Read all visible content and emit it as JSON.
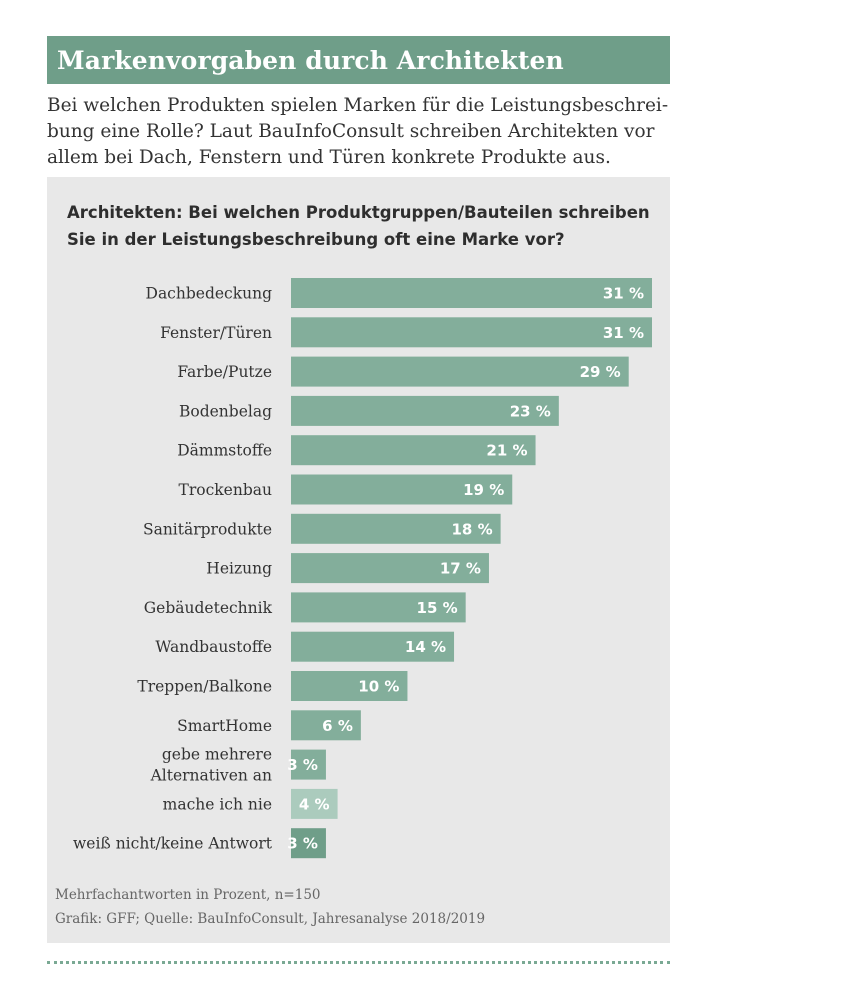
{
  "header": {
    "title": "Markenvorgaben durch Architekten",
    "intro_lines": [
      "Bei welchen Produkten spielen Marken für die Leistungsbeschrei-",
      "bung eine Rolle? Laut BauInfoConsult schreiben Architekten vor",
      "allem bei Dach, Fenstern und Türen konkrete Produkte aus."
    ]
  },
  "chart_data": {
    "type": "bar",
    "orientation": "horizontal",
    "title_lines": [
      "Architekten: Bei welchen Produktgruppen/Bauteilen schreiben",
      "Sie in der Leistungsbeschreibung oft eine Marke vor?"
    ],
    "categories": [
      [
        "Dachbedeckung"
      ],
      [
        "Fenster/Türen"
      ],
      [
        "Farbe/Putze"
      ],
      [
        "Bodenbelag"
      ],
      [
        "Dämmstoffe"
      ],
      [
        "Trockenbau"
      ],
      [
        "Sanitärprodukte"
      ],
      [
        "Heizung"
      ],
      [
        "Gebäudetechnik"
      ],
      [
        "Wandbaustoffe"
      ],
      [
        "Treppen/Balkone"
      ],
      [
        "SmartHome"
      ],
      [
        "gebe mehrere",
        "Alternativen an"
      ],
      [
        "mache ich nie"
      ],
      [
        "weiß nicht/keine Antwort"
      ]
    ],
    "values": [
      31,
      31,
      29,
      23,
      21,
      19,
      18,
      17,
      15,
      14,
      10,
      6,
      3,
      4,
      3
    ],
    "value_labels": [
      "31 %",
      "31 %",
      "29 %",
      "23 %",
      "21 %",
      "19 %",
      "18 %",
      "17 %",
      "15 %",
      "14 %",
      "10 %",
      "6 %",
      "3 %",
      "4 %",
      "3 %"
    ],
    "bar_colors": [
      "#83ae9b",
      "#83ae9b",
      "#83ae9b",
      "#83ae9b",
      "#83ae9b",
      "#83ae9b",
      "#83ae9b",
      "#83ae9b",
      "#83ae9b",
      "#83ae9b",
      "#83ae9b",
      "#83ae9b",
      "#83ae9b",
      "#abcbbd",
      "#6f9e89"
    ],
    "xlim": [
      0,
      31
    ],
    "grid": false,
    "legend": "none"
  },
  "footer": {
    "note": "Mehrfachantworten in Prozent, n=150",
    "source": "Grafik: GFF; Quelle: BauInfoConsult, Jahresanalyse 2018/2019"
  },
  "colors": {
    "title_bar": "#6f9e89",
    "panel": "#e8e8e8",
    "dotted_rule": "#7aa994"
  }
}
